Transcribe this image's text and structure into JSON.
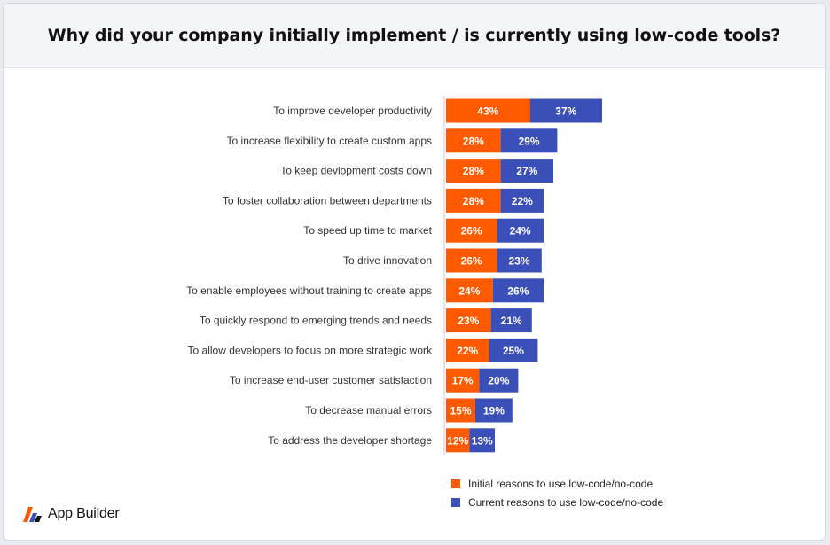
{
  "title": "Why did your company initially implement / is currently using low-code tools?",
  "colors": {
    "initial": "#ff5a00",
    "current": "#3b4fb8",
    "bar_text": "#ffffff",
    "label_text": "#333333"
  },
  "chart_data": {
    "type": "bar",
    "orientation": "horizontal",
    "stacked": true,
    "title": "Why did your company initially implement / is currently using low-code tools?",
    "categories": [
      "To improve developer productivity",
      "To increase flexibility to create custom apps",
      "To keep devlopment costs down",
      "To foster collaboration between departments",
      "To speed up time to market",
      "To drive innovation",
      "To enable employees without training to create apps",
      "To quickly respond to emerging trends and needs",
      "To allow developers to focus on more strategic work",
      "To increase end-user customer satisfaction",
      "To decrease manual errors",
      "To address the developer shortage"
    ],
    "series": [
      {
        "name": "Initial reasons to use low-code/no-code",
        "color": "#ff5a00",
        "values": [
          43,
          28,
          28,
          28,
          26,
          26,
          24,
          23,
          22,
          17,
          15,
          12
        ],
        "labels": [
          "43%",
          "28%",
          "28%",
          "28%",
          "26%",
          "26%",
          "24%",
          "23%",
          "22%",
          "17%",
          "15%",
          "12%"
        ]
      },
      {
        "name": "Current reasons to use low-code/no-code",
        "color": "#3b4fb8",
        "values": [
          37,
          29,
          27,
          22,
          24,
          23,
          26,
          21,
          25,
          20,
          19,
          13
        ],
        "labels": [
          "37%",
          "29%",
          "27%",
          "22%",
          "24%",
          "23%",
          "26%",
          "21%",
          "25%",
          "20%",
          "19%",
          "13%"
        ]
      }
    ],
    "xlabel": "",
    "ylabel": "",
    "legend_position": "bottom-center"
  },
  "legend": {
    "initial_label": "Initial reasons to use low-code/no-code",
    "current_label": "Current reasons to use low-code/no-code"
  },
  "brand": {
    "name": "App Builder",
    "icon": "app-builder-logo-icon"
  }
}
